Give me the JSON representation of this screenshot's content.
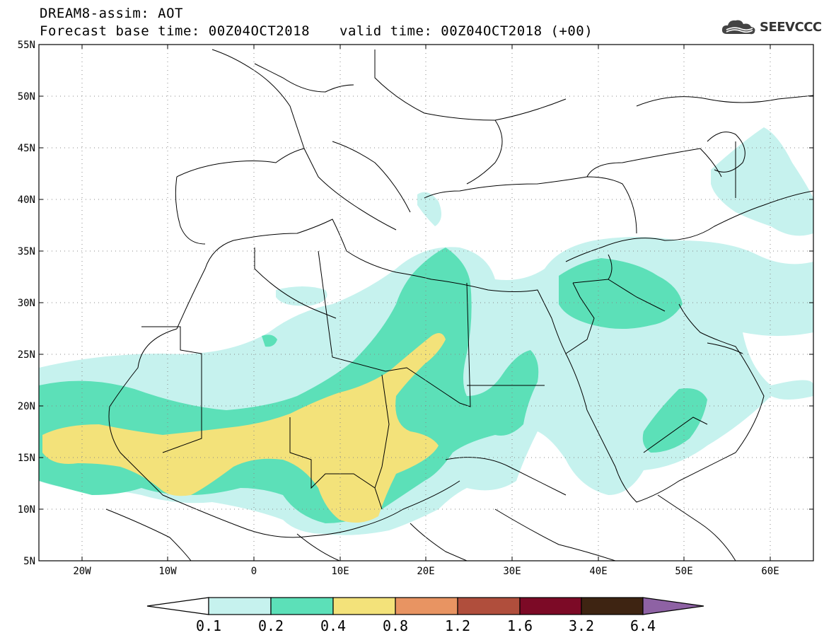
{
  "header": {
    "title": "DREAM8-assim: AOT",
    "base_time": "Forecast base time: 00Z04OCT2018",
    "valid_time": "valid time: 00Z04OCT2018 (+00)",
    "logo_text": "SEEVCCC"
  },
  "map": {
    "lat_labels": [
      "55N",
      "50N",
      "45N",
      "40N",
      "35N",
      "30N",
      "25N",
      "20N",
      "15N",
      "10N",
      "5N"
    ],
    "lon_labels": [
      "20W",
      "10W",
      "0",
      "10E",
      "20E",
      "30E",
      "40E",
      "50E",
      "60E"
    ],
    "lat_range": [
      5,
      55
    ],
    "lon_range": [
      -25,
      65
    ],
    "grid": "dotted"
  },
  "colorbar": {
    "labels": [
      "0.1",
      "0.2",
      "0.4",
      "0.8",
      "1.2",
      "1.6",
      "3.2",
      "6.4"
    ],
    "colors": [
      "#c6f2ee",
      "#5ce0b8",
      "#f3e27a",
      "#e89462",
      "#b04e3c",
      "#7c0a26",
      "#3e2412",
      "#8e62a4"
    ]
  },
  "colors": {
    "aot_low": "#c6f2ee",
    "aot_mid": "#5ce0b8",
    "aot_high": "#f3e27a"
  }
}
